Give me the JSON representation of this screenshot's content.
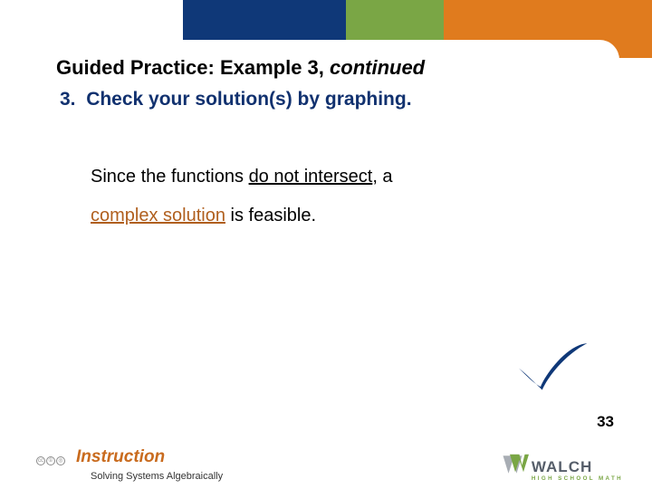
{
  "top_band": {
    "segments": [
      {
        "color": "#ffffff",
        "width_pct": 28
      },
      {
        "color": "#0f3878",
        "width_pct": 25
      },
      {
        "color": "#7aa645",
        "width_pct": 15
      },
      {
        "color": "#e07b1e",
        "width_pct": 32
      }
    ]
  },
  "title": {
    "prefix": "Guided Practice: Example 3, ",
    "continued": "continued",
    "color": "#000000",
    "fontsize": 22
  },
  "step": {
    "number": "3.",
    "text": "Check your solution(s) by graphing.",
    "color": "#11316f",
    "fontsize": 21
  },
  "body": {
    "line1_a": "Since the functions ",
    "line1_b": "do not intersect",
    "line1_c": ", a",
    "line2_a": "complex solution",
    "line2_b": " is feasible.",
    "complex_color": "#b05f1e"
  },
  "checkmark": {
    "color": "#0f3878"
  },
  "page_number": "33",
  "footer": {
    "instruction_label": "Instruction",
    "instruction_color": "#c96b1e",
    "subtitle": "Solving Systems Algebraically",
    "logo": {
      "text": "WALCH",
      "subtext": "HIGH SCHOOL MATH",
      "mark_green": "#7aa645",
      "mark_gray": "#a8adb4",
      "text_color": "#565e6a"
    }
  }
}
